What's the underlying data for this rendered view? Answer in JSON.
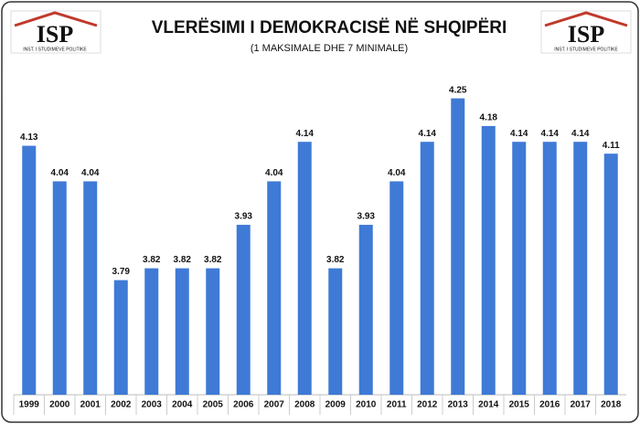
{
  "chart_data": {
    "type": "bar",
    "title": "VLERËSIMI I DEMOKRACISË NË SHQIPËRI",
    "subtitle": "(1 MAKSIMALE DHE 7 MINIMALE)",
    "logos": [
      {
        "name": "ISP",
        "tagline": "INST. I STUDIMEVE POLITIKE"
      },
      {
        "name": "ISP",
        "tagline": "INST. I STUDIMEVE POLITIKE"
      }
    ],
    "categories": [
      "1999",
      "2000",
      "2001",
      "2002",
      "2003",
      "2004",
      "2005",
      "2006",
      "2007",
      "2008",
      "2009",
      "2010",
      "2011",
      "2012",
      "2013",
      "2014",
      "2015",
      "2016",
      "2017",
      "2018"
    ],
    "values": [
      4.13,
      4.04,
      4.04,
      3.79,
      3.82,
      3.82,
      3.82,
      3.93,
      4.04,
      4.14,
      3.82,
      3.93,
      4.04,
      4.14,
      4.25,
      4.18,
      4.14,
      4.14,
      4.14,
      4.11
    ],
    "color": "#3f7ad6",
    "ylim": [
      3.5,
      4.3
    ]
  }
}
